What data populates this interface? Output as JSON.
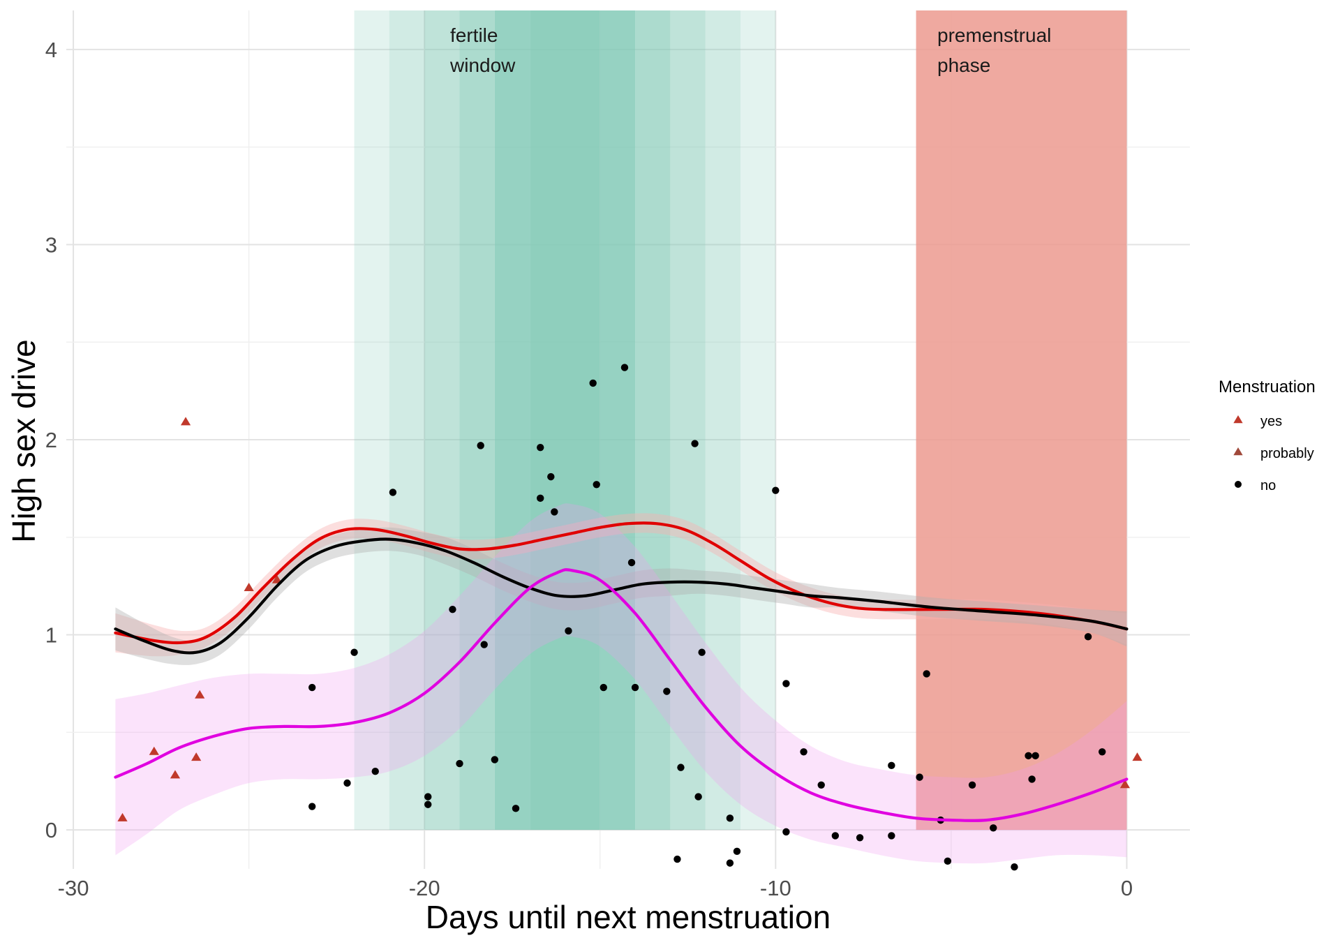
{
  "chart_data": {
    "type": "scatter",
    "xlabel": "Days until next menstruation",
    "ylabel": "High sex drive",
    "xlim": [
      -30.2,
      1.8
    ],
    "ylim": [
      -0.2,
      4.2
    ],
    "x_ticks": [
      -30,
      -20,
      -10,
      0
    ],
    "y_ticks": [
      0,
      1,
      2,
      3,
      4
    ],
    "grid": true,
    "legend": {
      "title": "Menstruation",
      "position": "right",
      "entries": [
        {
          "label": "yes",
          "shape": "triangle",
          "color": "#c0392b"
        },
        {
          "label": "probably",
          "shape": "triangle",
          "color": "#a0493b"
        },
        {
          "label": "no",
          "shape": "circle",
          "color": "#000000"
        }
      ]
    },
    "annotations": [
      {
        "text": [
          "fertile",
          "window"
        ],
        "x": -19.5,
        "y": 4.0
      },
      {
        "text": [
          "premenstrual",
          "phase"
        ],
        "x": -5.5,
        "y": 4.0
      }
    ],
    "fertile_bands": [
      {
        "x0": -22,
        "x1": -21,
        "alpha": 0.22
      },
      {
        "x0": -21,
        "x1": -20,
        "alpha": 0.36
      },
      {
        "x0": -20,
        "x1": -19,
        "alpha": 0.5
      },
      {
        "x0": -19,
        "x1": -18,
        "alpha": 0.65
      },
      {
        "x0": -18,
        "x1": -17,
        "alpha": 0.82
      },
      {
        "x0": -17,
        "x1": -15,
        "alpha": 0.88
      },
      {
        "x0": -15,
        "x1": -14,
        "alpha": 0.82
      },
      {
        "x0": -14,
        "x1": -13,
        "alpha": 0.65
      },
      {
        "x0": -13,
        "x1": -12,
        "alpha": 0.5
      },
      {
        "x0": -12,
        "x1": -11,
        "alpha": 0.36
      },
      {
        "x0": -11,
        "x1": -10,
        "alpha": 0.22
      }
    ],
    "fertile_color": "#7fc8b4",
    "premenstrual_band": {
      "x0": -6,
      "x1": 0,
      "color": "#ec9a8f",
      "alpha": 0.85
    },
    "series": [
      {
        "shape": "triangle",
        "color": "#c0392b",
        "legend": "yes",
        "points": [
          [
            -28.6,
            0.06
          ],
          [
            -27.7,
            0.4
          ],
          [
            -27.1,
            0.28
          ],
          [
            -26.5,
            0.37
          ],
          [
            -26.4,
            0.69
          ],
          [
            -25.0,
            1.24
          ],
          [
            -24.2,
            1.28
          ],
          [
            -26.8,
            2.09
          ],
          [
            -0.05,
            0.23
          ],
          [
            0.3,
            0.37
          ]
        ]
      },
      {
        "shape": "circle",
        "color": "#000000",
        "legend": "no",
        "points": [
          [
            -22.2,
            0.24
          ],
          [
            -21.4,
            0.3
          ],
          [
            -20.9,
            1.73
          ],
          [
            -19.9,
            0.13
          ],
          [
            -19.9,
            0.17
          ],
          [
            -19.2,
            1.13
          ],
          [
            -19.0,
            0.34
          ],
          [
            -18.4,
            1.97
          ],
          [
            -18.3,
            0.95
          ],
          [
            -18.0,
            0.36
          ],
          [
            -17.4,
            0.11
          ],
          [
            -16.7,
            1.96
          ],
          [
            -16.7,
            1.7
          ],
          [
            -16.4,
            1.81
          ],
          [
            -16.3,
            1.63
          ],
          [
            -15.9,
            1.02
          ],
          [
            -15.2,
            2.29
          ],
          [
            -15.1,
            1.77
          ],
          [
            -14.9,
            0.73
          ],
          [
            -14.3,
            2.37
          ],
          [
            -14.1,
            1.37
          ],
          [
            -14.0,
            0.73
          ],
          [
            -13.1,
            0.71
          ],
          [
            -12.8,
            -0.15
          ],
          [
            -12.7,
            0.32
          ],
          [
            -12.3,
            1.98
          ],
          [
            -12.2,
            0.17
          ],
          [
            -12.1,
            0.91
          ],
          [
            -11.3,
            0.06
          ],
          [
            -11.3,
            -0.17
          ],
          [
            -11.1,
            -0.11
          ],
          [
            -23.2,
            0.12
          ],
          [
            -23.2,
            0.73
          ],
          [
            -22.0,
            0.91
          ],
          [
            -10.0,
            1.74
          ],
          [
            -9.7,
            0.75
          ],
          [
            -9.7,
            -0.01
          ],
          [
            -9.2,
            0.4
          ],
          [
            -8.7,
            0.23
          ],
          [
            -8.3,
            -0.03
          ],
          [
            -7.6,
            -0.04
          ],
          [
            -6.7,
            -0.03
          ],
          [
            -6.7,
            0.33
          ],
          [
            -5.9,
            0.27
          ],
          [
            -5.7,
            0.8
          ],
          [
            -5.3,
            0.05
          ],
          [
            -5.1,
            -0.16
          ],
          [
            -4.4,
            0.23
          ],
          [
            -3.8,
            0.01
          ],
          [
            -3.2,
            -0.19
          ],
          [
            -2.7,
            0.26
          ],
          [
            -2.8,
            0.38
          ],
          [
            -2.6,
            0.38
          ],
          [
            -1.1,
            0.99
          ],
          [
            -0.7,
            0.4
          ]
        ]
      }
    ],
    "smooth_lines": [
      {
        "color": "#e00000",
        "band_color": "#f7b0b0",
        "band_alpha": 0.42,
        "points": [
          [
            -28.8,
            1.01
          ],
          [
            -27.7,
            0.97
          ],
          [
            -26.9,
            0.96
          ],
          [
            -26.2,
            0.99
          ],
          [
            -25.4,
            1.09
          ],
          [
            -24.6,
            1.24
          ],
          [
            -23.8,
            1.38
          ],
          [
            -23.0,
            1.49
          ],
          [
            -22.2,
            1.54
          ],
          [
            -21.4,
            1.54
          ],
          [
            -20.6,
            1.51
          ],
          [
            -19.8,
            1.47
          ],
          [
            -19.0,
            1.44
          ],
          [
            -18.2,
            1.44
          ],
          [
            -17.4,
            1.46
          ],
          [
            -16.6,
            1.49
          ],
          [
            -15.8,
            1.52
          ],
          [
            -15.0,
            1.55
          ],
          [
            -14.2,
            1.57
          ],
          [
            -13.4,
            1.57
          ],
          [
            -12.6,
            1.54
          ],
          [
            -11.8,
            1.47
          ],
          [
            -11.0,
            1.38
          ],
          [
            -10.2,
            1.29
          ],
          [
            -9.4,
            1.22
          ],
          [
            -8.6,
            1.17
          ],
          [
            -7.8,
            1.14
          ],
          [
            -7.0,
            1.13
          ],
          [
            -5.5,
            1.13
          ],
          [
            -4.0,
            1.13
          ],
          [
            -2.5,
            1.11
          ],
          [
            -1.0,
            1.07
          ],
          [
            0.0,
            1.03
          ]
        ],
        "half_width": [
          0.1,
          0.08,
          0.06,
          0.05,
          0.05,
          0.05,
          0.05,
          0.05,
          0.05,
          0.05,
          0.05,
          0.05,
          0.05,
          0.05,
          0.05,
          0.05,
          0.05,
          0.05,
          0.05,
          0.05,
          0.05,
          0.05,
          0.05,
          0.05,
          0.05,
          0.05,
          0.05,
          0.05,
          0.05,
          0.05,
          0.05,
          0.06,
          0.08
        ]
      },
      {
        "color": "#000000",
        "band_color": "#b0b0b0",
        "band_alpha": 0.4,
        "points": [
          [
            -28.8,
            1.03
          ],
          [
            -28.0,
            0.97
          ],
          [
            -27.2,
            0.92
          ],
          [
            -26.5,
            0.91
          ],
          [
            -25.8,
            0.96
          ],
          [
            -25.0,
            1.09
          ],
          [
            -24.2,
            1.25
          ],
          [
            -23.4,
            1.38
          ],
          [
            -22.6,
            1.45
          ],
          [
            -21.8,
            1.48
          ],
          [
            -21.0,
            1.49
          ],
          [
            -20.2,
            1.47
          ],
          [
            -19.4,
            1.43
          ],
          [
            -18.6,
            1.37
          ],
          [
            -17.8,
            1.3
          ],
          [
            -17.0,
            1.24
          ],
          [
            -16.2,
            1.2
          ],
          [
            -15.4,
            1.2
          ],
          [
            -14.6,
            1.23
          ],
          [
            -13.8,
            1.26
          ],
          [
            -13.0,
            1.27
          ],
          [
            -12.2,
            1.27
          ],
          [
            -11.4,
            1.26
          ],
          [
            -10.6,
            1.24
          ],
          [
            -9.8,
            1.22
          ],
          [
            -9.0,
            1.2
          ],
          [
            -8.2,
            1.19
          ],
          [
            -7.0,
            1.17
          ],
          [
            -5.5,
            1.14
          ],
          [
            -4.0,
            1.12
          ],
          [
            -2.5,
            1.1
          ],
          [
            -1.0,
            1.07
          ],
          [
            0.0,
            1.03
          ]
        ],
        "half_width": [
          0.11,
          0.09,
          0.07,
          0.06,
          0.06,
          0.06,
          0.06,
          0.06,
          0.06,
          0.06,
          0.06,
          0.06,
          0.07,
          0.07,
          0.07,
          0.07,
          0.07,
          0.07,
          0.07,
          0.07,
          0.07,
          0.06,
          0.06,
          0.06,
          0.06,
          0.06,
          0.05,
          0.05,
          0.05,
          0.05,
          0.05,
          0.06,
          0.09
        ]
      },
      {
        "color": "#e000e0",
        "band_color": "#f29af2",
        "band_alpha": 0.28,
        "points": [
          [
            -28.8,
            0.27
          ],
          [
            -27.9,
            0.34
          ],
          [
            -27.0,
            0.42
          ],
          [
            -26.0,
            0.48
          ],
          [
            -25.0,
            0.52
          ],
          [
            -24.0,
            0.53
          ],
          [
            -23.0,
            0.53
          ],
          [
            -22.0,
            0.55
          ],
          [
            -21.0,
            0.6
          ],
          [
            -20.0,
            0.7
          ],
          [
            -19.0,
            0.86
          ],
          [
            -18.0,
            1.06
          ],
          [
            -17.0,
            1.24
          ],
          [
            -16.2,
            1.32
          ],
          [
            -15.8,
            1.33
          ],
          [
            -15.0,
            1.28
          ],
          [
            -14.0,
            1.11
          ],
          [
            -13.0,
            0.87
          ],
          [
            -12.0,
            0.63
          ],
          [
            -11.0,
            0.43
          ],
          [
            -10.0,
            0.29
          ],
          [
            -9.0,
            0.19
          ],
          [
            -8.0,
            0.13
          ],
          [
            -7.0,
            0.09
          ],
          [
            -6.0,
            0.06
          ],
          [
            -5.0,
            0.05
          ],
          [
            -4.0,
            0.05
          ],
          [
            -3.0,
            0.08
          ],
          [
            -2.0,
            0.13
          ],
          [
            -1.0,
            0.19
          ],
          [
            0.0,
            0.26
          ]
        ],
        "half_width": [
          0.4,
          0.36,
          0.32,
          0.3,
          0.28,
          0.27,
          0.27,
          0.28,
          0.3,
          0.32,
          0.34,
          0.34,
          0.34,
          0.34,
          0.34,
          0.34,
          0.34,
          0.34,
          0.33,
          0.3,
          0.27,
          0.24,
          0.22,
          0.22,
          0.22,
          0.22,
          0.22,
          0.23,
          0.26,
          0.32,
          0.4
        ]
      }
    ]
  }
}
